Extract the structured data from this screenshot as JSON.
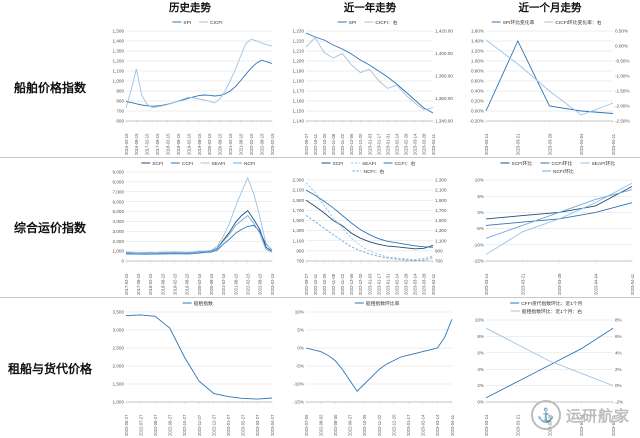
{
  "headers": [
    "历史走势",
    "近一年走势",
    "近一个月走势"
  ],
  "rows": [
    {
      "label": "船舶价格指数"
    },
    {
      "label": "综合运价指数"
    },
    {
      "label": "租船与货代价格"
    }
  ],
  "watermark": {
    "text": "运研航家",
    "icon": "⚓"
  },
  "colors": {
    "dark_blue": "#1f4e79",
    "mid_blue": "#2e75b6",
    "light_blue": "#9dc3e6",
    "soft_blue": "#6fa8dc",
    "grid": "#dcdcdc"
  },
  "chart_data": [
    {
      "type": "line",
      "x": [
        "2016-02-15",
        "2016-05-15",
        "2016-08-15",
        "2016-11-15",
        "2017-02-15",
        "2017-05-15",
        "2017-08-15",
        "2017-11-15",
        "2018-02-15",
        "2018-05-15",
        "2018-08-15",
        "2018-11-15",
        "2019-02-15",
        "2019-05-15",
        "2019-08-15",
        "2019-11-15",
        "2020-02-15",
        "2020-05-15",
        "2020-08-15",
        "2020-11-15",
        "2021-02-15",
        "2021-05-15",
        "2021-08-15",
        "2021-11-15",
        "2022-02-15",
        "2022-05-15",
        "2022-08-15",
        "2022-11-15",
        "2023-02-15"
      ],
      "ylim": [
        600,
        1500
      ],
      "ystep": 100,
      "yfmt": "num",
      "series": [
        {
          "name": "SPI",
          "axis": "left",
          "color": "#2e75b6",
          "dash": false,
          "values": [
            795,
            785,
            772,
            760,
            752,
            748,
            750,
            758,
            768,
            782,
            798,
            812,
            828,
            842,
            854,
            860,
            857,
            850,
            856,
            872,
            900,
            945,
            1005,
            1068,
            1128,
            1178,
            1208,
            1192,
            1176
          ]
        },
        {
          "name": "CICFI",
          "axis": "left",
          "color": "#9dc3e6",
          "dash": false,
          "values": [
            730,
            910,
            1120,
            860,
            770,
            735,
            742,
            752,
            764,
            780,
            800,
            820,
            838,
            830,
            820,
            810,
            798,
            782,
            822,
            900,
            1005,
            1120,
            1250,
            1375,
            1418,
            1402,
            1382,
            1362,
            1350
          ]
        }
      ]
    },
    {
      "type": "line",
      "x": [
        "2022-09-27",
        "2022-10-11",
        "2022-10-25",
        "2022-11-08",
        "2022-11-22",
        "2022-12-06",
        "2022-12-20",
        "2023-01-03",
        "2023-01-17",
        "2023-01-31",
        "2023-02-14",
        "2023-02-28",
        "2023-03-14",
        "2023-03-28",
        "2023-04-11"
      ],
      "ylim": [
        1140,
        1230
      ],
      "ystep": 10,
      "yfmt": "num",
      "y2lim": [
        1340,
        1420
      ],
      "y2step": 20,
      "y2fmt": "num2",
      "series": [
        {
          "name": "SPI",
          "axis": "left",
          "color": "#2e75b6",
          "dash": false,
          "values": [
            1228,
            1224,
            1221,
            1216,
            1212,
            1207,
            1201,
            1196,
            1190,
            1184,
            1177,
            1169,
            1161,
            1153,
            1148
          ]
        },
        {
          "name": "CICFI：右",
          "axis": "right",
          "color": "#9dc3e6",
          "dash": false,
          "values": [
            1406,
            1414,
            1401,
            1396,
            1400,
            1390,
            1383,
            1386,
            1376,
            1369,
            1372,
            1363,
            1356,
            1350,
            1352
          ]
        }
      ]
    },
    {
      "type": "line",
      "x": [
        "2023-03-14",
        "2023-03-21",
        "2023-03-28",
        "2023-04-04",
        "2023-04-11"
      ],
      "ylim": [
        -0.2,
        1.6
      ],
      "ystep": 0.2,
      "yfmt": "pct2",
      "y2lim": [
        -2.5,
        0.5
      ],
      "y2step": 0.5,
      "y2fmt": "pct2",
      "series": [
        {
          "name": "SPI环比变化率",
          "axis": "left",
          "color": "#2e75b6",
          "dash": false,
          "values": [
            0.0,
            1.4,
            0.1,
            0.0,
            -0.05
          ]
        },
        {
          "name": "CICFI环比变化率：右",
          "axis": "right",
          "color": "#9dc3e6",
          "dash": false,
          "values": [
            0.2,
            -0.6,
            -1.5,
            -2.3,
            -1.9
          ]
        }
      ]
    },
    {
      "type": "line",
      "x": [
        "2017-02-15",
        "2017-05-15",
        "2017-08-15",
        "2017-11-15",
        "2018-02-15",
        "2018-05-15",
        "2018-08-15",
        "2018-11-15",
        "2019-02-15",
        "2019-05-15",
        "2019-08-15",
        "2019-11-15",
        "2020-02-15",
        "2020-05-15",
        "2020-08-15",
        "2020-11-15",
        "2021-02-15",
        "2021-05-15",
        "2021-08-15",
        "2021-11-15",
        "2022-02-15",
        "2022-05-15",
        "2022-08-15",
        "2022-11-15",
        "2023-02-15"
      ],
      "ylim": [
        0,
        9000
      ],
      "ystep": 1000,
      "yfmt": "num",
      "series": [
        {
          "name": "SCFI",
          "axis": "left",
          "color": "#1f4e79",
          "dash": false,
          "values": [
            830,
            800,
            770,
            790,
            810,
            790,
            820,
            840,
            860,
            840,
            800,
            850,
            950,
            900,
            1000,
            1300,
            2100,
            2900,
            3900,
            4600,
            5100,
            4200,
            3200,
            1400,
            980
          ]
        },
        {
          "name": "CCFI",
          "axis": "left",
          "color": "#2e75b6",
          "dash": false,
          "values": [
            720,
            710,
            700,
            690,
            700,
            710,
            720,
            730,
            740,
            730,
            720,
            740,
            800,
            850,
            900,
            1100,
            1700,
            2200,
            2800,
            3200,
            3500,
            3600,
            3000,
            1700,
            1100
          ]
        },
        {
          "name": "SEAFI",
          "axis": "left",
          "color": "#9dc3e6",
          "dash": false,
          "values": [
            900,
            880,
            860,
            870,
            880,
            870,
            890,
            900,
            920,
            900,
            880,
            920,
            1000,
            1000,
            1100,
            1500,
            2500,
            3800,
            5500,
            7000,
            8400,
            6800,
            4500,
            1800,
            1000
          ]
        },
        {
          "name": "NCFI",
          "axis": "left",
          "color": "#6fa8dc",
          "dash": false,
          "values": [
            800,
            780,
            760,
            770,
            790,
            770,
            800,
            820,
            840,
            820,
            790,
            830,
            920,
            880,
            980,
            1250,
            2000,
            2700,
            3600,
            4100,
            4600,
            3800,
            2800,
            1200,
            900
          ]
        }
      ]
    },
    {
      "type": "line",
      "x": [
        "2022-09-27",
        "2022-10-11",
        "2022-10-25",
        "2022-11-08",
        "2022-11-22",
        "2022-12-06",
        "2022-12-20",
        "2023-01-03",
        "2023-01-17",
        "2023-01-31",
        "2023-02-14",
        "2023-02-28",
        "2023-03-14",
        "2023-03-28",
        "2023-04-11"
      ],
      "ylim": [
        700,
        2300
      ],
      "ystep": 200,
      "yfmt": "num",
      "y2lim": [
        700,
        2300
      ],
      "y2step": 200,
      "y2fmt": "num",
      "series": [
        {
          "name": "SCFI",
          "axis": "left",
          "color": "#1f4e79",
          "dash": false,
          "values": [
            1900,
            1780,
            1650,
            1500,
            1400,
            1250,
            1150,
            1080,
            1030,
            995,
            980,
            960,
            940,
            950,
            1010
          ]
        },
        {
          "name": "SEAFI",
          "axis": "left",
          "color": "#9dc3e6",
          "dash": true,
          "values": [
            2250,
            2050,
            1800,
            1550,
            1350,
            1150,
            1000,
            900,
            830,
            780,
            760,
            740,
            730,
            750,
            800
          ]
        },
        {
          "name": "CCFI：右",
          "axis": "right",
          "color": "#2e75b6",
          "dash": false,
          "values": [
            2100,
            2000,
            1880,
            1750,
            1600,
            1450,
            1320,
            1220,
            1140,
            1090,
            1060,
            1030,
            1000,
            980,
            970
          ]
        },
        {
          "name": "NCFI：右",
          "axis": "right",
          "color": "#6fa8dc",
          "dash": true,
          "values": [
            1600,
            1480,
            1350,
            1220,
            1100,
            980,
            900,
            840,
            790,
            760,
            740,
            720,
            710,
            720,
            770
          ]
        }
      ]
    },
    {
      "type": "line",
      "x": [
        "2023-03-14",
        "2023-03-21",
        "2023-03-28",
        "2023-04-04",
        "2023-04-11"
      ],
      "ylim": [
        -15,
        10
      ],
      "ystep": 5,
      "yfmt": "pct0",
      "series": [
        {
          "name": "SCFI环比",
          "axis": "left",
          "color": "#1f4e79",
          "dash": false,
          "values": [
            -2,
            -1,
            0,
            2,
            8
          ]
        },
        {
          "name": "CCFI环比",
          "axis": "left",
          "color": "#2e75b6",
          "dash": false,
          "values": [
            -4,
            -3,
            -2,
            0,
            3
          ]
        },
        {
          "name": "SEAFI环比",
          "axis": "left",
          "color": "#9dc3e6",
          "dash": false,
          "values": [
            -13,
            -6,
            -2,
            3,
            9
          ]
        },
        {
          "name": "NCFI环比",
          "axis": "left",
          "color": "#6fa8dc",
          "dash": false,
          "values": [
            -8,
            -4,
            0,
            4,
            7
          ]
        }
      ]
    },
    {
      "type": "line",
      "x": [
        "2022-06-27",
        "2022-07-27",
        "2022-08-27",
        "2022-09-27",
        "2022-10-27",
        "2022-11-27",
        "2022-12-27",
        "2023-01-27",
        "2023-02-27",
        "2023-03-27",
        "2023-04-27"
      ],
      "ylim": [
        1000,
        3500
      ],
      "ystep": 500,
      "yfmt": "num",
      "series": [
        {
          "name": "船租指数",
          "axis": "left",
          "color": "#2e75b6",
          "dash": false,
          "values": [
            3400,
            3420,
            3380,
            3050,
            2250,
            1580,
            1240,
            1150,
            1100,
            1080,
            1110
          ]
        }
      ]
    },
    {
      "type": "line",
      "x": [
        "2022-07-05",
        "2022-07-19",
        "2022-08-02",
        "2022-08-16",
        "2022-08-30",
        "2022-09-13",
        "2022-09-27",
        "2022-10-11",
        "2022-10-25",
        "2022-11-08",
        "2022-11-22",
        "2022-12-06",
        "2022-12-20",
        "2023-01-03",
        "2023-01-17",
        "2023-01-31",
        "2023-02-14",
        "2023-02-28",
        "2023-03-14",
        "2023-03-28",
        "2023-04-11"
      ],
      "ylim": [
        -15,
        10
      ],
      "ystep": 5,
      "yfmt": "pct0",
      "series": [
        {
          "name": "船租指数环比率",
          "axis": "left",
          "color": "#2e75b6",
          "dash": false,
          "values": [
            0,
            -0.5,
            -1,
            -2,
            -3.5,
            -6,
            -9,
            -12,
            -10,
            -8,
            -6,
            -4.5,
            -3.5,
            -2.5,
            -2,
            -1.5,
            -1,
            -0.5,
            0,
            3,
            8
          ]
        }
      ]
    },
    {
      "type": "line",
      "x": [
        "2023-03-14",
        "2023-03-21",
        "2023-03-28",
        "2023-04-04",
        "2023-04-11"
      ],
      "ylim": [
        0,
        10
      ],
      "ystep": 2,
      "yfmt": "pct0",
      "y2lim": [
        -2,
        8
      ],
      "y2step": 2,
      "y2fmt": "pct0",
      "series": [
        {
          "name": "CFFI货代指数环比：近1个月",
          "axis": "left",
          "color": "#2e75b6",
          "dash": false,
          "values": [
            0.5,
            2.5,
            4.5,
            6.5,
            9.0
          ]
        },
        {
          "name": "船租指数环比：近1个月：右",
          "axis": "right",
          "color": "#9dc3e6",
          "dash": false,
          "values": [
            7.0,
            5.0,
            3.0,
            1.5,
            0.0
          ]
        }
      ]
    }
  ]
}
